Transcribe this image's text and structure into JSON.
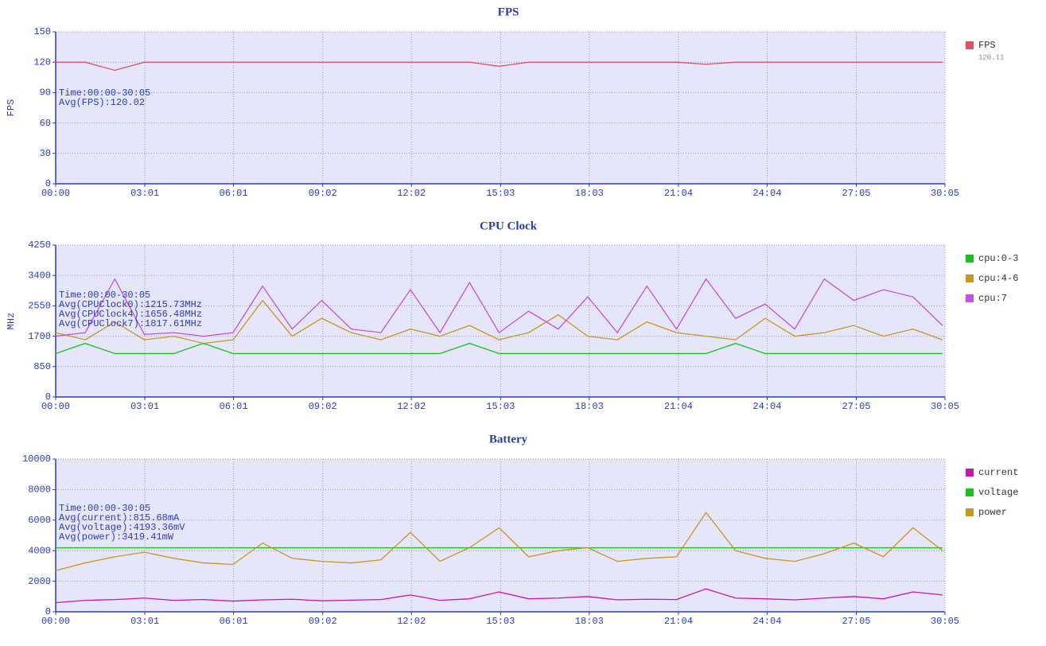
{
  "chart_data": [
    {
      "type": "line",
      "title": "FPS",
      "ylabel": "FPS",
      "annotations": [
        "Time:00:00-30:05",
        "Avg(FPS):120.02"
      ],
      "legend_value": "120.11",
      "x": [
        0,
        60,
        120,
        180,
        240,
        300,
        360,
        420,
        480,
        540,
        600,
        660,
        720,
        780,
        840,
        900,
        960,
        1020,
        1080,
        1140,
        1200,
        1260,
        1320,
        1380,
        1440,
        1500,
        1560,
        1620,
        1680,
        1740,
        1800
      ],
      "xlim": [
        0,
        1805
      ],
      "xticks": [
        {
          "value": 0,
          "label": "00:00"
        },
        {
          "value": 181,
          "label": "03:01"
        },
        {
          "value": 361,
          "label": "06:01"
        },
        {
          "value": 542,
          "label": "09:02"
        },
        {
          "value": 722,
          "label": "12:02"
        },
        {
          "value": 903,
          "label": "15:03"
        },
        {
          "value": 1083,
          "label": "18:03"
        },
        {
          "value": 1264,
          "label": "21:04"
        },
        {
          "value": 1444,
          "label": "24:04"
        },
        {
          "value": 1625,
          "label": "27:05"
        },
        {
          "value": 1805,
          "label": "30:05"
        }
      ],
      "ylim": [
        0,
        150
      ],
      "yticks": [
        0,
        30,
        60,
        90,
        120,
        150
      ],
      "grid": true,
      "series": [
        {
          "name": "FPS",
          "color": "#e0506a",
          "values": [
            120,
            120,
            112,
            120,
            120,
            120,
            120,
            120,
            120,
            120,
            120,
            120,
            120,
            120,
            120,
            116,
            120,
            120,
            120,
            120,
            120,
            120,
            118,
            120,
            120,
            120,
            120,
            120,
            120,
            120,
            120
          ]
        }
      ]
    },
    {
      "type": "line",
      "title": "CPU Clock",
      "ylabel": "MHz",
      "annotations": [
        "Time:00:00-30:05",
        "Avg(CPUClock0):1215.73MHz",
        "Avg(CPUClock4):1656.48MHz",
        "Avg(CPUClock7):1817.61MHz"
      ],
      "x": [
        0,
        60,
        120,
        180,
        240,
        300,
        360,
        420,
        480,
        540,
        600,
        660,
        720,
        780,
        840,
        900,
        960,
        1020,
        1080,
        1140,
        1200,
        1260,
        1320,
        1380,
        1440,
        1500,
        1560,
        1620,
        1680,
        1740,
        1800
      ],
      "xlim": [
        0,
        1805
      ],
      "xticks": [
        {
          "value": 0,
          "label": "00:00"
        },
        {
          "value": 181,
          "label": "03:01"
        },
        {
          "value": 361,
          "label": "06:01"
        },
        {
          "value": 542,
          "label": "09:02"
        },
        {
          "value": 722,
          "label": "12:02"
        },
        {
          "value": 903,
          "label": "15:03"
        },
        {
          "value": 1083,
          "label": "18:03"
        },
        {
          "value": 1264,
          "label": "21:04"
        },
        {
          "value": 1444,
          "label": "24:04"
        },
        {
          "value": 1625,
          "label": "27:05"
        },
        {
          "value": 1805,
          "label": "30:05"
        }
      ],
      "ylim": [
        0,
        4250
      ],
      "yticks": [
        0,
        850,
        1700,
        2550,
        3400,
        4250
      ],
      "grid": true,
      "series": [
        {
          "name": "cpu:0-3",
          "color": "#1ec01e",
          "values": [
            1215,
            1500,
            1215,
            1215,
            1215,
            1500,
            1215,
            1215,
            1215,
            1215,
            1215,
            1215,
            1215,
            1215,
            1500,
            1215,
            1215,
            1215,
            1215,
            1215,
            1215,
            1215,
            1215,
            1500,
            1215,
            1215,
            1215,
            1215,
            1215,
            1215,
            1215
          ]
        },
        {
          "name": "cpu:4-6",
          "color": "#c8961e",
          "values": [
            1800,
            1600,
            2100,
            1600,
            1700,
            1500,
            1600,
            2700,
            1700,
            2200,
            1800,
            1600,
            1900,
            1700,
            2000,
            1600,
            1800,
            2300,
            1700,
            1600,
            2100,
            1800,
            1700,
            1600,
            2200,
            1700,
            1800,
            2000,
            1700,
            1900,
            1600
          ]
        },
        {
          "name": "cpu:7",
          "color": "#c050e8",
          "values": [
            1700,
            1800,
            3300,
            1750,
            1800,
            1700,
            1800,
            3100,
            1900,
            2700,
            1900,
            1800,
            3000,
            1800,
            3200,
            1800,
            2400,
            1900,
            2800,
            1800,
            3100,
            1900,
            3300,
            2200,
            2600,
            1900,
            3300,
            2700,
            3000,
            2800,
            2000
          ]
        }
      ]
    },
    {
      "type": "line",
      "title": "Battery",
      "annotations": [
        "Time:00:00-30:05",
        "Avg(current):815.68mA",
        "Avg(voltage):4193.36mV",
        "Avg(power):3419.41mW"
      ],
      "x": [
        0,
        60,
        120,
        180,
        240,
        300,
        360,
        420,
        480,
        540,
        600,
        660,
        720,
        780,
        840,
        900,
        960,
        1020,
        1080,
        1140,
        1200,
        1260,
        1320,
        1380,
        1440,
        1500,
        1560,
        1620,
        1680,
        1740,
        1800
      ],
      "xlim": [
        0,
        1805
      ],
      "xticks": [
        {
          "value": 0,
          "label": "00:00"
        },
        {
          "value": 181,
          "label": "03:01"
        },
        {
          "value": 361,
          "label": "06:01"
        },
        {
          "value": 542,
          "label": "09:02"
        },
        {
          "value": 722,
          "label": "12:02"
        },
        {
          "value": 903,
          "label": "15:03"
        },
        {
          "value": 1083,
          "label": "18:03"
        },
        {
          "value": 1264,
          "label": "21:04"
        },
        {
          "value": 1444,
          "label": "24:04"
        },
        {
          "value": 1625,
          "label": "27:05"
        },
        {
          "value": 1805,
          "label": "30:05"
        }
      ],
      "ylim": [
        0,
        10000
      ],
      "yticks": [
        0,
        2000,
        4000,
        6000,
        8000,
        10000
      ],
      "grid": true,
      "series": [
        {
          "name": "current",
          "color": "#c814b4",
          "values": [
            600,
            750,
            800,
            900,
            750,
            800,
            700,
            780,
            820,
            720,
            760,
            800,
            1100,
            750,
            850,
            1300,
            850,
            900,
            1000,
            780,
            820,
            800,
            1500,
            900,
            850,
            780,
            900,
            1000,
            850,
            1300,
            1100
          ]
        },
        {
          "name": "voltage",
          "color": "#1ec01e",
          "values": [
            4190,
            4190,
            4190,
            4190,
            4190,
            4190,
            4190,
            4190,
            4190,
            4190,
            4190,
            4190,
            4190,
            4190,
            4190,
            4190,
            4190,
            4190,
            4190,
            4190,
            4190,
            4190,
            4190,
            4190,
            4190,
            4190,
            4190,
            4190,
            4190,
            4190,
            4190
          ]
        },
        {
          "name": "power",
          "color": "#c8961e",
          "values": [
            2700,
            3200,
            3600,
            3900,
            3500,
            3200,
            3100,
            4500,
            3500,
            3300,
            3200,
            3400,
            5200,
            3300,
            4200,
            5500,
            3600,
            4000,
            4200,
            3300,
            3500,
            3600,
            6500,
            4000,
            3500,
            3300,
            3800,
            4500,
            3600,
            5500,
            4000
          ]
        }
      ]
    }
  ]
}
